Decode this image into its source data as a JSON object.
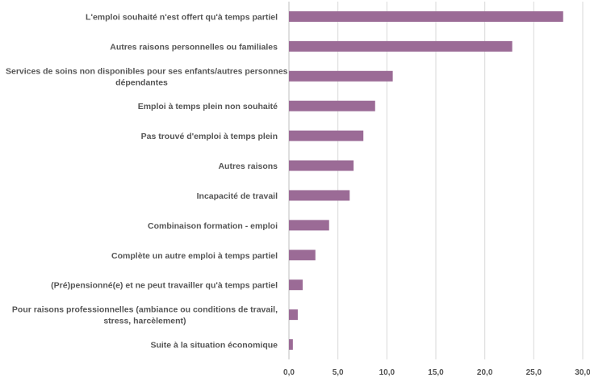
{
  "chart_data": {
    "type": "bar",
    "orientation": "horizontal",
    "title": "",
    "xlabel": "",
    "ylabel": "",
    "xlim": [
      0,
      30
    ],
    "ticks": [
      "0,0",
      "5,0",
      "10,0",
      "15,0",
      "20,0",
      "25,0",
      "30,0"
    ],
    "grid": true,
    "legend": "none",
    "bar_color": "#9b6b96",
    "categories": [
      [
        "L'emploi souhaité n'est offert qu'à temps partiel"
      ],
      [
        "Autres raisons personnelles ou familiales"
      ],
      [
        "Services de soins non disponibles pour ses enfants/autres personnes",
        "dépendantes"
      ],
      [
        "Emploi à temps plein non souhaité"
      ],
      [
        "Pas trouvé d'emploi à temps plein"
      ],
      [
        "Autres raisons"
      ],
      [
        "Incapacité de travail"
      ],
      [
        "Combinaison formation - emploi"
      ],
      [
        "Complète un autre emploi à temps partiel"
      ],
      [
        "(Pré)pensionné(e) et ne peut travailler qu'à temps partiel"
      ],
      [
        "Pour raisons professionnelles (ambiance ou conditions de travail,",
        "stress, harcèlement)"
      ],
      [
        "Suite à la situation économique"
      ]
    ],
    "values": [
      28.0,
      22.8,
      10.6,
      8.8,
      7.6,
      6.6,
      6.2,
      4.1,
      2.7,
      1.4,
      0.9,
      0.4
    ]
  }
}
